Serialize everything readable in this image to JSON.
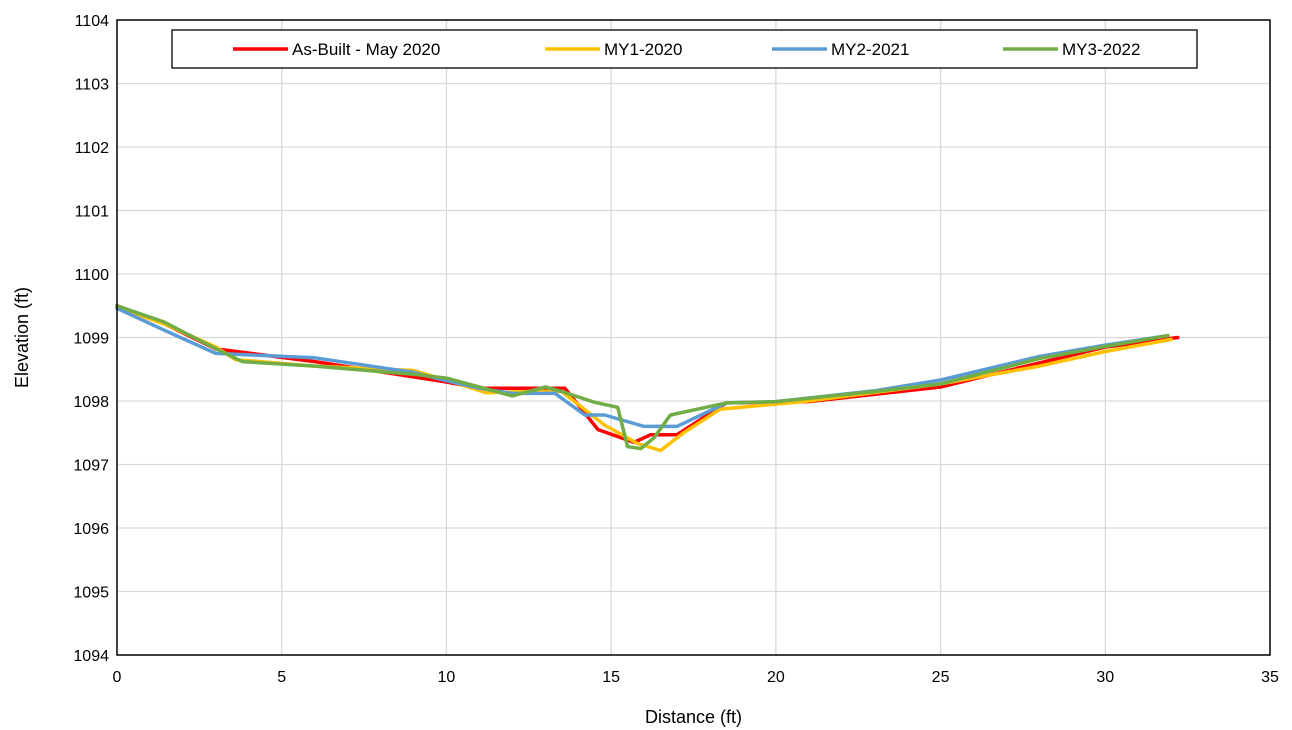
{
  "chart_data": {
    "type": "line",
    "title": "",
    "xlabel": "Distance (ft)",
    "ylabel": "Elevation (ft)",
    "xlim": [
      0,
      35
    ],
    "ylim": [
      1094,
      1104
    ],
    "xticks": [
      0,
      5,
      10,
      15,
      20,
      25,
      30,
      35
    ],
    "yticks": [
      1094,
      1095,
      1096,
      1097,
      1098,
      1099,
      1100,
      1101,
      1102,
      1103,
      1104
    ],
    "grid": true,
    "legend_position": "top",
    "series": [
      {
        "name": "As-Built - May 2020",
        "color": "#ff0000",
        "points": [
          [
            0,
            1099.5
          ],
          [
            1.5,
            1099.2
          ],
          [
            3,
            1098.82
          ],
          [
            6,
            1098.62
          ],
          [
            9,
            1098.38
          ],
          [
            10,
            1098.3
          ],
          [
            11,
            1098.2
          ],
          [
            12.5,
            1098.2
          ],
          [
            13.6,
            1098.2
          ],
          [
            14.6,
            1097.55
          ],
          [
            15.7,
            1097.35
          ],
          [
            16.2,
            1097.47
          ],
          [
            17,
            1097.47
          ],
          [
            18.5,
            1097.97
          ],
          [
            21,
            1097.99
          ],
          [
            25,
            1098.22
          ],
          [
            28,
            1098.6
          ],
          [
            30,
            1098.85
          ],
          [
            32.2,
            1099.0
          ]
        ]
      },
      {
        "name": "MY1-2020",
        "color": "#ffc000",
        "points": [
          [
            0,
            1099.48
          ],
          [
            1.5,
            1099.2
          ],
          [
            3,
            1098.85
          ],
          [
            3.6,
            1098.65
          ],
          [
            6,
            1098.55
          ],
          [
            9,
            1098.48
          ],
          [
            10,
            1098.33
          ],
          [
            11.2,
            1098.13
          ],
          [
            12.5,
            1098.15
          ],
          [
            13.5,
            1098.15
          ],
          [
            14.8,
            1097.62
          ],
          [
            15.8,
            1097.33
          ],
          [
            16.5,
            1097.22
          ],
          [
            17.2,
            1097.5
          ],
          [
            18.3,
            1097.87
          ],
          [
            21,
            1098.0
          ],
          [
            25,
            1098.27
          ],
          [
            28,
            1098.55
          ],
          [
            30,
            1098.78
          ],
          [
            32,
            1098.97
          ]
        ]
      },
      {
        "name": "MY2-2021",
        "color": "#5b9bd5",
        "points": [
          [
            0,
            1099.46
          ],
          [
            1.5,
            1099.1
          ],
          [
            3,
            1098.75
          ],
          [
            6,
            1098.68
          ],
          [
            9,
            1098.45
          ],
          [
            10,
            1098.32
          ],
          [
            11,
            1098.2
          ],
          [
            12,
            1098.12
          ],
          [
            13.3,
            1098.12
          ],
          [
            14.2,
            1097.78
          ],
          [
            14.8,
            1097.78
          ],
          [
            16,
            1097.6
          ],
          [
            17,
            1097.6
          ],
          [
            18.5,
            1097.97
          ],
          [
            20,
            1097.99
          ],
          [
            23,
            1098.16
          ],
          [
            25,
            1098.33
          ],
          [
            28,
            1098.7
          ],
          [
            30,
            1098.88
          ],
          [
            31.9,
            1099.03
          ]
        ]
      },
      {
        "name": "MY3-2022",
        "color": "#70ad47",
        "points": [
          [
            0,
            1099.5
          ],
          [
            1.4,
            1099.25
          ],
          [
            2.9,
            1098.85
          ],
          [
            3.8,
            1098.62
          ],
          [
            6,
            1098.55
          ],
          [
            9,
            1098.42
          ],
          [
            10,
            1098.36
          ],
          [
            11,
            1098.22
          ],
          [
            12,
            1098.08
          ],
          [
            13,
            1098.22
          ],
          [
            13.5,
            1098.15
          ],
          [
            14.5,
            1097.98
          ],
          [
            15.2,
            1097.9
          ],
          [
            15.5,
            1097.28
          ],
          [
            15.9,
            1097.25
          ],
          [
            16.3,
            1097.42
          ],
          [
            16.8,
            1097.78
          ],
          [
            18.5,
            1097.97
          ],
          [
            20,
            1097.99
          ],
          [
            23,
            1098.15
          ],
          [
            25,
            1098.27
          ],
          [
            28,
            1098.67
          ],
          [
            30,
            1098.86
          ],
          [
            31.9,
            1099.03
          ]
        ]
      }
    ]
  }
}
